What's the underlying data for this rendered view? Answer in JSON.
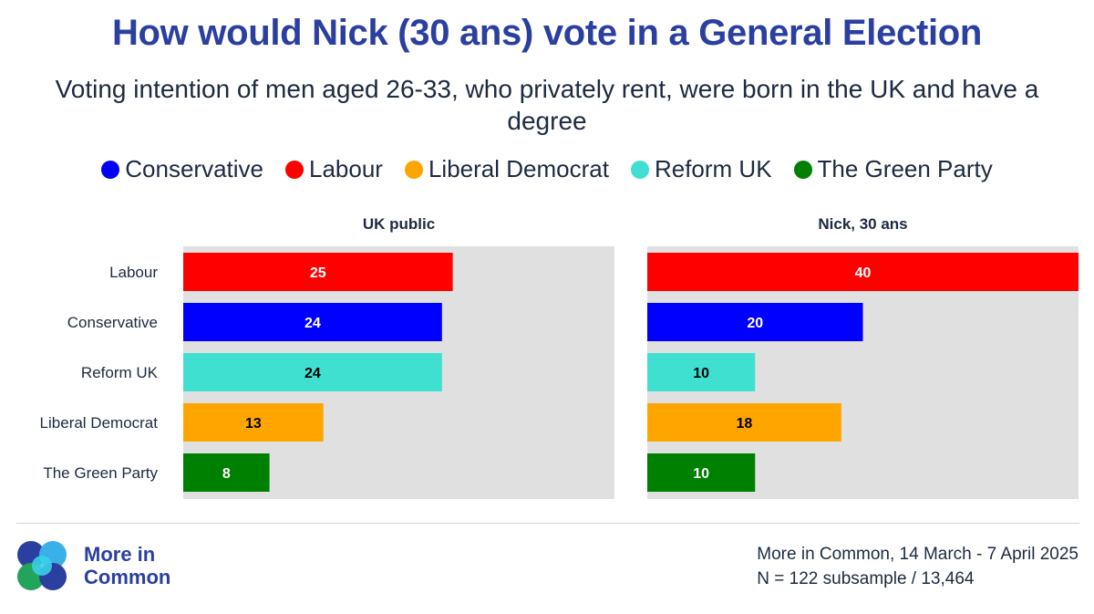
{
  "title": "How would Nick (30 ans) vote in a General Election",
  "subtitle": "Voting intention of men aged 26-33, who privately rent, were born in the UK and have a degree",
  "legend": [
    {
      "label": "Conservative",
      "color": "#0000ff"
    },
    {
      "label": "Labour",
      "color": "#ff0000"
    },
    {
      "label": "Liberal Democrat",
      "color": "#ffa500"
    },
    {
      "label": "Reform UK",
      "color": "#40e0d0"
    },
    {
      "label": "The Green Party",
      "color": "#008000"
    }
  ],
  "chart_data": {
    "type": "bar",
    "orientation": "horizontal",
    "categories": [
      "Labour",
      "Conservative",
      "Reform UK",
      "Liberal Democrat",
      "The Green Party"
    ],
    "colors": [
      "#ff0000",
      "#0000ff",
      "#40e0d0",
      "#ffa500",
      "#008000"
    ],
    "label_colors": [
      "#ffffff",
      "#ffffff",
      "#000000",
      "#000000",
      "#ffffff"
    ],
    "xlim": [
      0,
      40
    ],
    "panels": [
      {
        "title": "UK public",
        "values": [
          25,
          24,
          24,
          13,
          8
        ]
      },
      {
        "title": "Nick, 30 ans",
        "values": [
          40,
          20,
          10,
          18,
          10
        ]
      }
    ]
  },
  "logo": {
    "line1": "More in",
    "line2": "Common"
  },
  "source": {
    "line1": "More in Common, 14 March - 7 April 2025",
    "line2": "N = 122 subsample / 13,464"
  }
}
